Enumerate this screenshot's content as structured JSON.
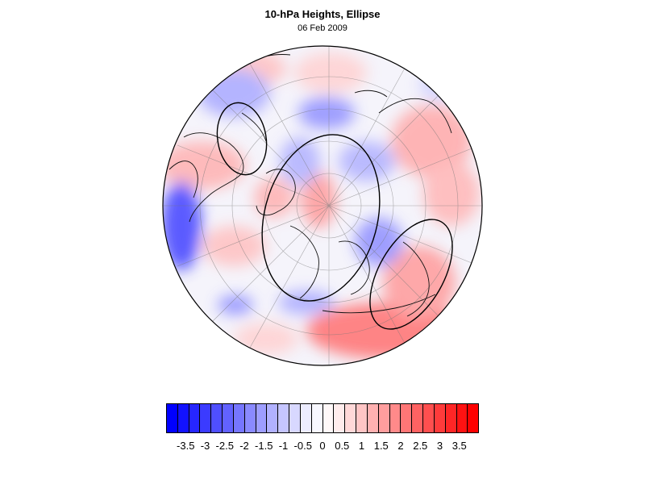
{
  "title": "10-hPa Heights, Ellipse",
  "subtitle": "06 Feb 2009",
  "colorbar": {
    "ticks": [
      "-3.5",
      "-3",
      "-2.5",
      "-2",
      "-1.5",
      "-1",
      "-0.5",
      "0",
      "0.5",
      "1",
      "1.5",
      "2",
      "2.5",
      "3",
      "3.5"
    ],
    "colors": [
      "#0000ff",
      "#1212ff",
      "#2626ff",
      "#3b3bff",
      "#4f4fff",
      "#6262ff",
      "#7676ff",
      "#8a8aff",
      "#9e9eff",
      "#b1b1ff",
      "#c5c5ff",
      "#d8d8ff",
      "#ececff",
      "#f8f8ff",
      "#fff8f8",
      "#ffecec",
      "#ffd8d8",
      "#ffc5c5",
      "#ffb1b1",
      "#ff9e9e",
      "#ff8a8a",
      "#ff7676",
      "#ff6262",
      "#ff4f4f",
      "#ff3b3b",
      "#ff2626",
      "#ff1212",
      "#ff0000"
    ]
  },
  "map": {
    "projection": "orthographic-north-polar",
    "ellipse_contour_color": "#000000",
    "anomaly_colors": {
      "positive": "#ff4040",
      "negative": "#3a3aff"
    }
  }
}
